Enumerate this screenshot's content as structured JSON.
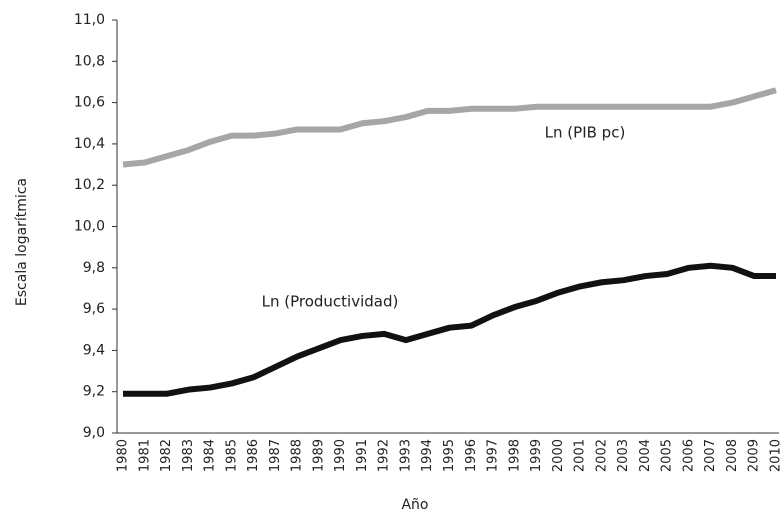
{
  "chart_data": {
    "type": "line",
    "y_label": "Escala logarítmica",
    "x_label": "Año",
    "categories": [
      "1980",
      "1981",
      "1982",
      "1983",
      "1984",
      "1985",
      "1986",
      "1987",
      "1988",
      "1989",
      "1990",
      "1991",
      "1992",
      "1993",
      "1994",
      "1995",
      "1996",
      "1997",
      "1998",
      "1999",
      "2000",
      "2001",
      "2002",
      "2003",
      "2004",
      "2005",
      "2006",
      "2007",
      "2008",
      "2009",
      "2010"
    ],
    "series": [
      {
        "name": "Ln (PIB pc)",
        "color": "#a6a6a6",
        "values": [
          10.3,
          10.31,
          10.34,
          10.37,
          10.41,
          10.44,
          10.44,
          10.45,
          10.47,
          10.47,
          10.47,
          10.5,
          10.51,
          10.53,
          10.56,
          10.56,
          10.57,
          10.57,
          10.57,
          10.58,
          10.58,
          10.58,
          10.58,
          10.58,
          10.58,
          10.58,
          10.58,
          10.58,
          10.6,
          10.63,
          10.66
        ]
      },
      {
        "name": "Ln (Productividad)",
        "color": "#111111",
        "values": [
          9.19,
          9.19,
          9.19,
          9.21,
          9.22,
          9.24,
          9.27,
          9.32,
          9.37,
          9.41,
          9.45,
          9.47,
          9.48,
          9.45,
          9.48,
          9.51,
          9.52,
          9.57,
          9.61,
          9.64,
          9.68,
          9.71,
          9.73,
          9.74,
          9.76,
          9.77,
          9.8,
          9.81,
          9.8,
          9.76,
          9.76
        ]
      }
    ],
    "ylim": [
      9.0,
      11.0
    ],
    "yticks": [
      {
        "value": 9.0,
        "label": "9,0"
      },
      {
        "value": 9.2,
        "label": "9,2"
      },
      {
        "value": 9.4,
        "label": "9,4"
      },
      {
        "value": 9.6,
        "label": "9,6"
      },
      {
        "value": 9.8,
        "label": "9,8"
      },
      {
        "value": 10.0,
        "label": "10,0"
      },
      {
        "value": 10.2,
        "label": "10,2"
      },
      {
        "value": 10.4,
        "label": "10,4"
      },
      {
        "value": 10.6,
        "label": "10,6"
      },
      {
        "value": 10.8,
        "label": "10,8"
      },
      {
        "value": 11.0,
        "label": "11,0"
      }
    ],
    "grid": false
  }
}
